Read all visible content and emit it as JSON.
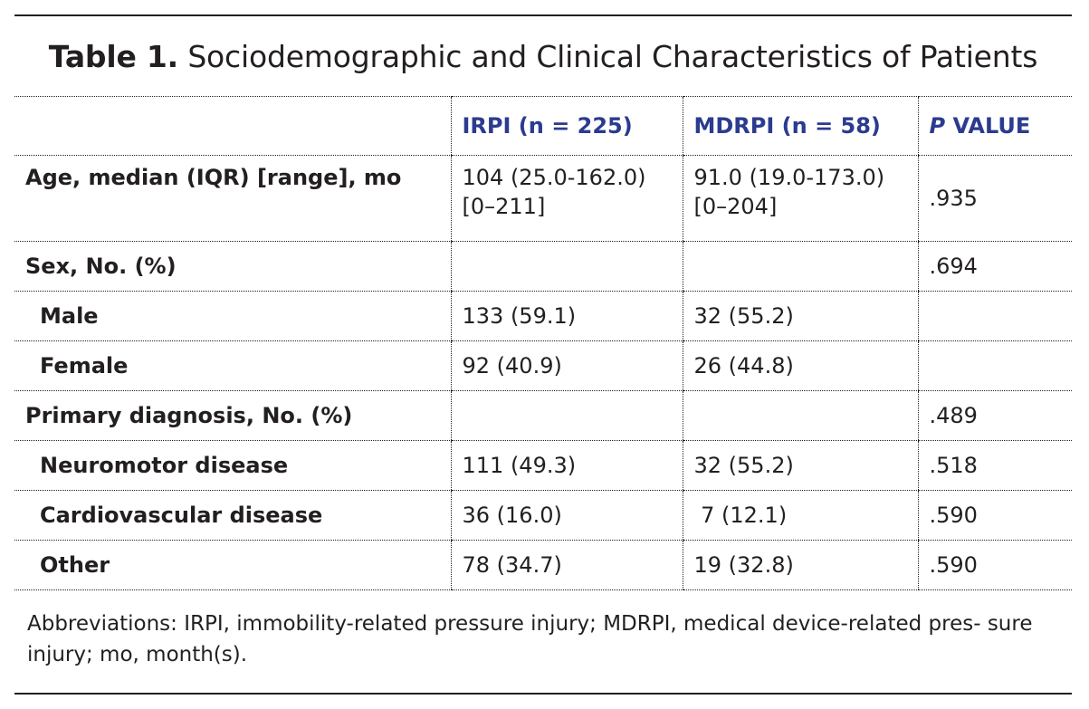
{
  "title": {
    "label": "Table 1.",
    "text": "Sociodemographic and Clinical Characteristics of Patients"
  },
  "table": {
    "headers": [
      "",
      "IRPI (n = 225)",
      "MDRPI (n = 58)",
      "P",
      "VALUE"
    ],
    "rows": [
      {
        "label": "Age, median (IQR) [range], mo",
        "irpi_1": "104 (25.0-162.0)",
        "irpi_2": "[0–211]",
        "mdrpi_1": "91.0 (19.0-173.0)",
        "mdrpi_2": "[0–204]",
        "p": ".935"
      },
      {
        "label": "Sex, No. (%)",
        "irpi": "",
        "mdrpi": "",
        "p": ".694"
      },
      {
        "label": "Male",
        "irpi": "133 (59.1)",
        "mdrpi": "32 (55.2)",
        "p": ""
      },
      {
        "label": "Female",
        "irpi": "92 (40.9)",
        "mdrpi": "26 (44.8)",
        "p": ""
      },
      {
        "label": "Primary diagnosis, No. (%)",
        "irpi": "",
        "mdrpi": "",
        "p": ".489"
      },
      {
        "label": "Neuromotor disease",
        "irpi": "111 (49.3)",
        "mdrpi": "32 (55.2)",
        "p": ".518"
      },
      {
        "label": "Cardiovascular disease",
        "irpi": "36 (16.0)",
        "mdrpi": " 7 (12.1)",
        "p": ".590"
      },
      {
        "label": "Other",
        "irpi": "78 (34.7)",
        "mdrpi": "19 (32.8)",
        "p": ".590"
      }
    ]
  },
  "footnote": "Abbreviations: IRPI, immobility-related pressure injury; MDRPI, medical device-related pres- sure injury; mo, month(s).",
  "colors": {
    "header_text": "#2b3b8f",
    "body_text": "#231f20",
    "rules": "#231f20"
  }
}
